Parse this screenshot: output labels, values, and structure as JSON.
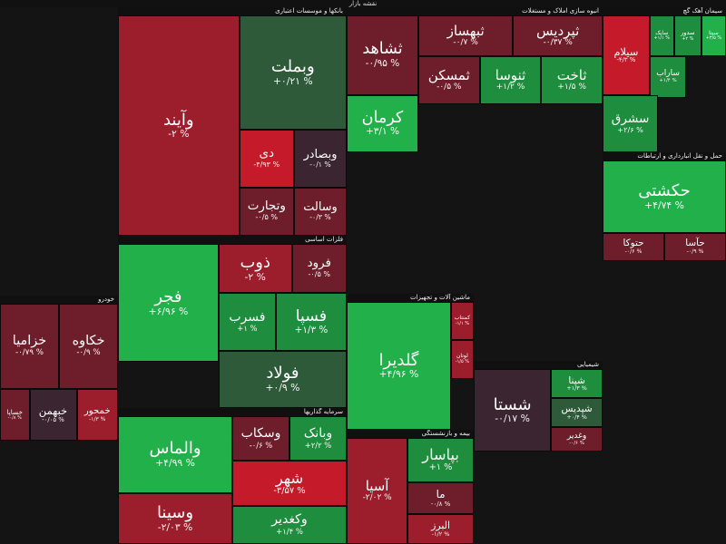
{
  "header": {
    "title": "نقشه بازار"
  },
  "colors": {
    "strong_neg": "#c41a2a",
    "neg": "#9c1d2b",
    "weak_neg": "#6e1e2a",
    "flat": "#3a2530",
    "weak_pos": "#2e5a3a",
    "pos": "#1e8e3e",
    "strong_pos": "#22b04b"
  },
  "chart_data": {
    "type": "treemap",
    "value_unit": "%",
    "sectors": [
      {
        "name": "بانکها و موسسات اعتباری",
        "tiles": [
          {
            "name": "وآیند",
            "change": -2,
            "label": "-۲ %"
          },
          {
            "name": "وبملت",
            "change": 0.21,
            "label": "+۰/۲۱ %"
          },
          {
            "name": "دی",
            "change": -4.93,
            "label": "-۴/۹۳ %"
          },
          {
            "name": "وبصادر",
            "change": -0.1,
            "label": "-۰/۱ %"
          },
          {
            "name": "وتجارت",
            "change": -0.5,
            "label": "-۰/۵ %"
          },
          {
            "name": "وسالت",
            "change": -0.3,
            "label": "-۰/۳ %"
          }
        ]
      },
      {
        "name": "انبوه سازی املاک و مستغلات",
        "tiles": [
          {
            "name": "ثشاهد",
            "change": -0.95,
            "label": "-۰/۹۵ %"
          },
          {
            "name": "ثبهساز",
            "change": -0.7,
            "label": "-۰/۷ %"
          },
          {
            "name": "ثپردیس",
            "change": -0.37,
            "label": "-۰/۳۷ %"
          },
          {
            "name": "کرمان",
            "change": 3.1,
            "label": "+۳/۱ %"
          },
          {
            "name": "ثمسکن",
            "change": -0.5,
            "label": "-۰/۵ %"
          },
          {
            "name": "ثنوسا",
            "change": 1.2,
            "label": "+۱/۲ %"
          },
          {
            "name": "ثاخت",
            "change": 1.5,
            "label": "+۱/۵ %"
          }
        ]
      },
      {
        "name": "سیمان آهک گچ",
        "tiles": [
          {
            "name": "سیلام",
            "change": -4.3,
            "label": "-۴/۳ %"
          },
          {
            "name": "سایک",
            "change": 1.1,
            "label": "+۱/۱ %"
          },
          {
            "name": "سدور",
            "change": 2.0,
            "label": "+۲ %"
          },
          {
            "name": "سیتا",
            "change": 3.5,
            "label": "+۳/۵ %"
          },
          {
            "name": "ساراب",
            "change": 1.4,
            "label": "+۱/۴ %"
          },
          {
            "name": "سشرق",
            "change": 2.6,
            "label": "+۲/۶ %"
          }
        ]
      },
      {
        "name": "خودرو",
        "tiles": [
          {
            "name": "خزامیا",
            "change": -0.79,
            "label": "-۰/۷۹ %"
          },
          {
            "name": "خکاوه",
            "change": -0.9,
            "label": "-۰/۹ %"
          },
          {
            "name": "خبهمن",
            "change": -0.05,
            "label": "-۰/۰۵ %"
          },
          {
            "name": "خمحور",
            "change": -1.3,
            "label": "-۱/۳ %"
          },
          {
            "name": "خساپا",
            "change": -0.8,
            "label": "-۰/۸ %"
          }
        ]
      },
      {
        "name": "فلزات اساسی",
        "tiles": [
          {
            "name": "فجر",
            "change": 6.96,
            "label": "+۶/۹۶ %"
          },
          {
            "name": "ذوب",
            "change": -2.0,
            "label": "-۲ %"
          },
          {
            "name": "فرود",
            "change": -0.5,
            "label": "-۰/۵ %"
          },
          {
            "name": "فسرب",
            "change": 1.0,
            "label": "+۱ %"
          },
          {
            "name": "فسپا",
            "change": 1.3,
            "label": "+۱/۳ %"
          },
          {
            "name": "فولاد",
            "change": 0.9,
            "label": "+۰/۹ %"
          }
        ]
      },
      {
        "name": "ماشین آلات و تجهیزات",
        "tiles": [
          {
            "name": "گلدیرا",
            "change": 4.96,
            "label": "+۴/۹۶ %"
          },
          {
            "name": "کمنتاب",
            "change": -1.1,
            "label": "-۱/۱ %"
          },
          {
            "name": "لوتان",
            "change": -1.5,
            "label": "-۱/۵ %"
          }
        ]
      },
      {
        "name": "حمل و نقل انبارداری و ارتباطات",
        "tiles": [
          {
            "name": "حکشتی",
            "change": 4.74,
            "label": "+۴/۷۴ %"
          },
          {
            "name": "حتوکا",
            "change": -0.6,
            "label": "-۰/۶ %"
          },
          {
            "name": "حآسا",
            "change": -0.9,
            "label": "-۰/۹ %"
          }
        ]
      },
      {
        "name": "سرمایه گذاریها",
        "tiles": [
          {
            "name": "والماس",
            "change": 4.99,
            "label": "+۴/۹۹ %"
          },
          {
            "name": "وسینا",
            "change": -2.03,
            "label": "-۲/۰۳ %"
          },
          {
            "name": "وسکاب",
            "change": -0.6,
            "label": "-۰/۶ %"
          },
          {
            "name": "وبانک",
            "change": 2.2,
            "label": "+۲/۲ %"
          },
          {
            "name": "شهر",
            "change": -3.57,
            "label": "-۳/۵۷ %"
          },
          {
            "name": "وکغدیر",
            "change": 1.4,
            "label": "+۱/۴ %"
          }
        ]
      },
      {
        "name": "بیمه و بازنشستگی",
        "tiles": [
          {
            "name": "آسیا",
            "change": -2.02,
            "label": "-۲/۰۲ %"
          },
          {
            "name": "بپاسار",
            "change": 1.0,
            "label": "+۱ %"
          },
          {
            "name": "ما",
            "change": -0.8,
            "label": "-۰/۸ %"
          },
          {
            "name": "البرز",
            "change": -1.2,
            "label": "-۱/۲ %"
          }
        ]
      },
      {
        "name": "شیمیایی",
        "tiles": [
          {
            "name": "شستا",
            "change": -0.17,
            "label": "-۰/۱۷ %"
          },
          {
            "name": "شپنا",
            "change": 1.3,
            "label": "+۱/۳ %"
          },
          {
            "name": "شپدیس",
            "change": 0.4,
            "label": "+۰/۴ %"
          },
          {
            "name": "وغدیر",
            "change": -0.6,
            "label": "-۰/۶ %"
          }
        ]
      }
    ]
  }
}
